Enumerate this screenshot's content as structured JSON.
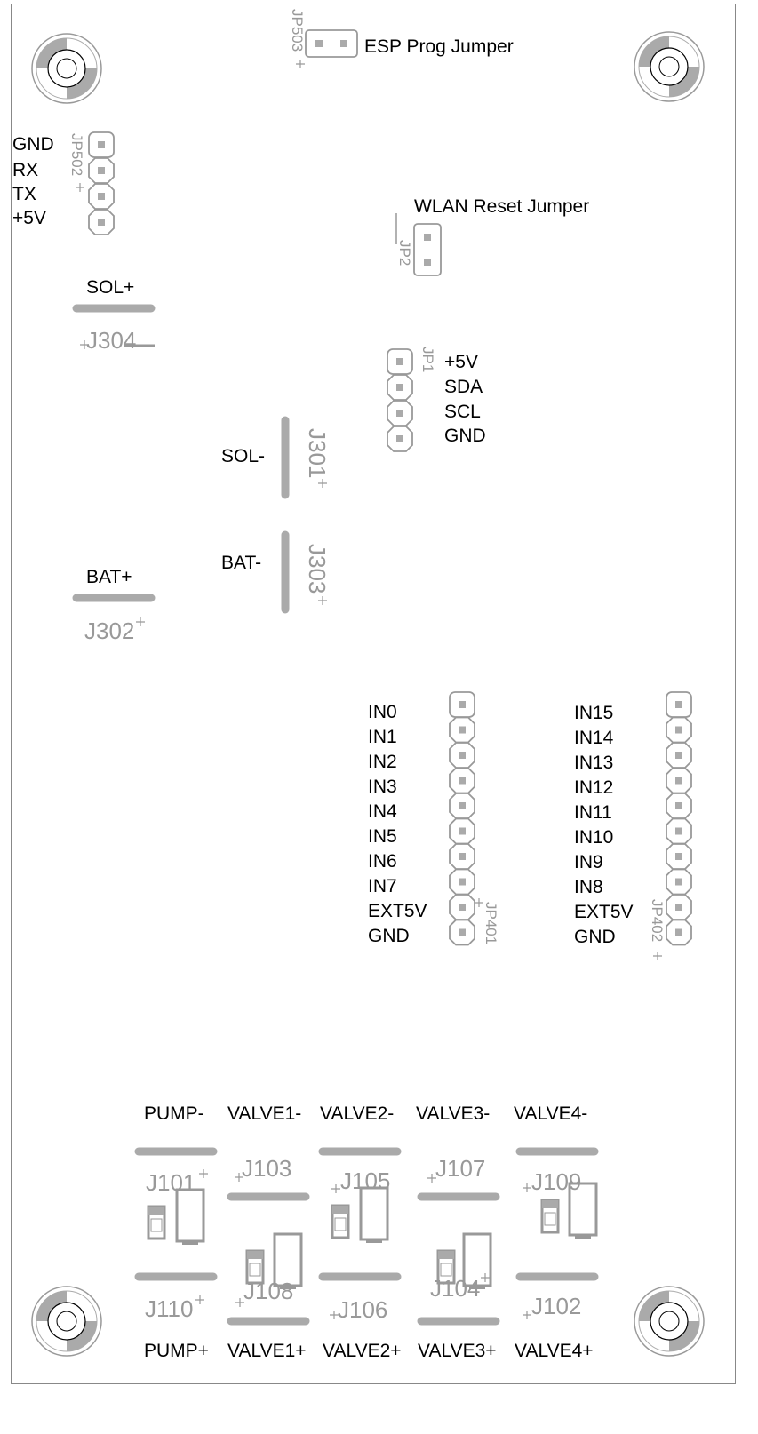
{
  "labels": {
    "esp_prog_jumper": "ESP Prog Jumper",
    "wlan_reset_jumper": "WLAN Reset Jumper",
    "uart": [
      "GND",
      "RX",
      "TX",
      "+5V"
    ],
    "i2c": [
      "+5V",
      "SDA",
      "SCL",
      "GND"
    ],
    "sol_plus": "SOL+",
    "sol_minus": "SOL-",
    "bat_plus": "BAT+",
    "bat_minus": "BAT-",
    "inputs_left": [
      "IN0",
      "IN1",
      "IN2",
      "IN3",
      "IN4",
      "IN5",
      "IN6",
      "IN7",
      "EXT5V",
      "GND"
    ],
    "inputs_right": [
      "IN15",
      "IN14",
      "IN13",
      "IN12",
      "IN11",
      "IN10",
      "IN9",
      "IN8",
      "EXT5V",
      "GND"
    ],
    "outputs_top": [
      "PUMP-",
      "VALVE1-",
      "VALVE2-",
      "VALVE3-",
      "VALVE4-"
    ],
    "outputs_bottom": [
      "PUMP+",
      "VALVE1+",
      "VALVE2+",
      "VALVE3+",
      "VALVE4+"
    ]
  },
  "refdes": {
    "jp503": "JP503",
    "jp502": "JP502",
    "jp2": "JP2",
    "jp1": "JP1",
    "j304": "J304",
    "j301": "J301",
    "j303": "J303",
    "j302": "J302",
    "jp401": "JP401",
    "jp402": "JP402",
    "j101": "J101",
    "j103": "J103",
    "j105": "J105",
    "j107": "J107",
    "j109": "J109",
    "j110": "J110",
    "j108": "J108",
    "j106": "J106",
    "j104": "J104",
    "j102": "J102"
  },
  "colors": {
    "silk": "#999999",
    "copper": "#aaaaaa",
    "hole": "#ffffff",
    "text": "#000000"
  }
}
